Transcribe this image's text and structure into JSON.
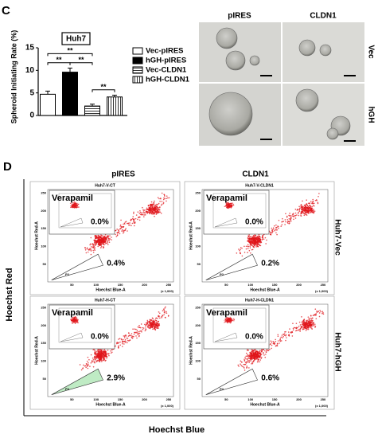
{
  "panel_labels": [
    "C",
    "D"
  ],
  "chart_data": {
    "type": "bar",
    "ylabel": "Spheroid Initiating Rate (%)",
    "annotation": "Huh7",
    "categories": [
      "Vec-pIRES",
      "hGH-pIRES",
      "Vec-CLDN1",
      "hGH-CLDN1"
    ],
    "values": [
      4.7,
      9.6,
      2.1,
      4.1
    ],
    "errors": [
      0.7,
      0.9,
      0.4,
      0.4
    ],
    "fills": [
      "white",
      "black",
      "horizontal",
      "vertical"
    ],
    "ylim": [
      0,
      15
    ],
    "yticks": [
      0,
      5,
      10,
      15
    ],
    "legend": "right",
    "comparisons": [
      {
        "groups": [
          "Vec-pIRES",
          "hGH-pIRES"
        ],
        "label": "**"
      },
      {
        "groups": [
          "hGH-pIRES",
          "Vec-CLDN1"
        ],
        "label": "**"
      },
      {
        "groups": [
          "Vec-pIRES",
          "Vec-CLDN1"
        ],
        "label": "**"
      },
      {
        "groups": [
          "Vec-CLDN1",
          "hGH-CLDN1"
        ],
        "label": "**"
      }
    ]
  },
  "images": {
    "columns": [
      "pIRES",
      "CLDN1"
    ],
    "rows": [
      "Vec",
      "hGH"
    ]
  },
  "flow": {
    "columns": [
      "pIRES",
      "CLDN1"
    ],
    "rows": [
      "Huh7-Vec",
      "Huh7-hGH"
    ],
    "y_title": "Hoechst Red",
    "x_title": "Hoechst Blue",
    "x_axis_label": "Hoechst Blue-A",
    "y_axis_label": "Hoechst Red-A",
    "ticks": [
      50,
      100,
      150,
      200,
      250
    ],
    "scale": "(x 1,000)",
    "gate": "P2",
    "plots": [
      {
        "title": "Huh7-V-CT",
        "inset_label": "Verapamil",
        "inset_percent": "0.0%",
        "percent": "0.4%"
      },
      {
        "title": "Huh7-V-CLDN1",
        "inset_label": "Verapamil",
        "inset_percent": "0.0%",
        "percent": "0.2%"
      },
      {
        "title": "Huh7-H-CT",
        "inset_label": "Verapamil",
        "inset_percent": "0.0%",
        "percent": "2.9%"
      },
      {
        "title": "Huh7-H-CLDN1",
        "inset_label": "Verapamil",
        "inset_percent": "0.0%",
        "percent": "0.6%"
      }
    ]
  }
}
